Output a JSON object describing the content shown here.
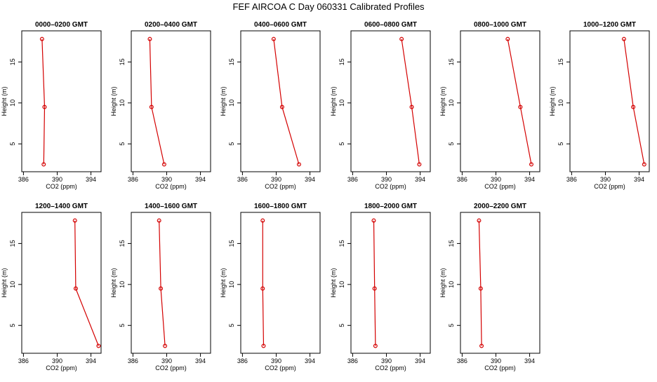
{
  "figure": {
    "title": "FEF AIRCOA C  Day 060331  Calibrated Profiles"
  },
  "chart_data": [
    {
      "type": "line",
      "title": "0000–0200 GMT",
      "xlabel": "CO2 (ppm)",
      "ylabel": "Height (m)",
      "xlim": [
        385.8,
        395.2
      ],
      "ylim": [
        1.6,
        18.8
      ],
      "xticks": [
        386,
        390,
        394
      ],
      "yticks": [
        5,
        10,
        15
      ],
      "x": [
        388.4,
        388.5,
        388.2
      ],
      "y": [
        2.5,
        9.5,
        17.8
      ]
    },
    {
      "type": "line",
      "title": "0200–0400 GMT",
      "xlabel": "CO2 (ppm)",
      "ylabel": "Height (m)",
      "xlim": [
        385.8,
        395.2
      ],
      "ylim": [
        1.6,
        18.8
      ],
      "xticks": [
        386,
        390,
        394
      ],
      "yticks": [
        5,
        10,
        15
      ],
      "x": [
        389.7,
        388.2,
        388.0
      ],
      "y": [
        2.5,
        9.5,
        17.8
      ]
    },
    {
      "type": "line",
      "title": "0400–0600 GMT",
      "xlabel": "CO2 (ppm)",
      "ylabel": "Height (m)",
      "xlim": [
        385.8,
        395.2
      ],
      "ylim": [
        1.6,
        18.8
      ],
      "xticks": [
        386,
        390,
        394
      ],
      "yticks": [
        5,
        10,
        15
      ],
      "x": [
        392.7,
        390.7,
        389.7
      ],
      "y": [
        2.5,
        9.5,
        17.8
      ]
    },
    {
      "type": "line",
      "title": "0600–0800 GMT",
      "xlabel": "CO2 (ppm)",
      "ylabel": "Height (m)",
      "xlim": [
        385.8,
        395.2
      ],
      "ylim": [
        1.6,
        18.8
      ],
      "xticks": [
        386,
        390,
        394
      ],
      "yticks": [
        5,
        10,
        15
      ],
      "x": [
        393.9,
        393.0,
        391.8
      ],
      "y": [
        2.5,
        9.5,
        17.8
      ]
    },
    {
      "type": "line",
      "title": "0800–1000 GMT",
      "xlabel": "CO2 (ppm)",
      "ylabel": "Height (m)",
      "xlim": [
        385.8,
        395.2
      ],
      "ylim": [
        1.6,
        18.8
      ],
      "xticks": [
        386,
        390,
        394
      ],
      "yticks": [
        5,
        10,
        15
      ],
      "x": [
        394.2,
        392.9,
        391.4
      ],
      "y": [
        2.5,
        9.5,
        17.8
      ]
    },
    {
      "type": "line",
      "title": "1000–1200 GMT",
      "xlabel": "CO2 (ppm)",
      "ylabel": "Height (m)",
      "xlim": [
        385.8,
        395.2
      ],
      "ylim": [
        1.6,
        18.8
      ],
      "xticks": [
        386,
        390,
        394
      ],
      "yticks": [
        5,
        10,
        15
      ],
      "x": [
        394.6,
        393.3,
        392.2
      ],
      "y": [
        2.5,
        9.5,
        17.8
      ]
    },
    {
      "type": "line",
      "title": "1200–1400 GMT",
      "xlabel": "CO2 (ppm)",
      "ylabel": "Height (m)",
      "xlim": [
        385.8,
        395.2
      ],
      "ylim": [
        1.6,
        18.8
      ],
      "xticks": [
        386,
        390,
        394
      ],
      "yticks": [
        5,
        10,
        15
      ],
      "x": [
        394.9,
        392.2,
        392.1
      ],
      "y": [
        2.5,
        9.5,
        17.8
      ]
    },
    {
      "type": "line",
      "title": "1400–1600 GMT",
      "xlabel": "CO2 (ppm)",
      "ylabel": "Height (m)",
      "xlim": [
        385.8,
        395.2
      ],
      "ylim": [
        1.6,
        18.8
      ],
      "xticks": [
        386,
        390,
        394
      ],
      "yticks": [
        5,
        10,
        15
      ],
      "x": [
        389.8,
        389.3,
        389.1
      ],
      "y": [
        2.5,
        9.5,
        17.8
      ]
    },
    {
      "type": "line",
      "title": "1600–1800 GMT",
      "xlabel": "CO2 (ppm)",
      "ylabel": "Height (m)",
      "xlim": [
        385.8,
        395.2
      ],
      "ylim": [
        1.6,
        18.8
      ],
      "xticks": [
        386,
        390,
        394
      ],
      "yticks": [
        5,
        10,
        15
      ],
      "x": [
        388.5,
        388.4,
        388.4
      ],
      "y": [
        2.5,
        9.5,
        17.8
      ]
    },
    {
      "type": "line",
      "title": "1800–2000 GMT",
      "xlabel": "CO2 (ppm)",
      "ylabel": "Height (m)",
      "xlim": [
        385.8,
        395.2
      ],
      "ylim": [
        1.6,
        18.8
      ],
      "xticks": [
        386,
        390,
        394
      ],
      "yticks": [
        5,
        10,
        15
      ],
      "x": [
        388.7,
        388.6,
        388.5
      ],
      "y": [
        2.5,
        9.5,
        17.8
      ]
    },
    {
      "type": "line",
      "title": "2000–2200 GMT",
      "xlabel": "CO2 (ppm)",
      "ylabel": "Height (m)",
      "xlim": [
        385.8,
        395.2
      ],
      "ylim": [
        1.6,
        18.8
      ],
      "xticks": [
        386,
        390,
        394
      ],
      "yticks": [
        5,
        10,
        15
      ],
      "x": [
        388.3,
        388.2,
        388.0
      ],
      "y": [
        2.5,
        9.5,
        17.8
      ]
    }
  ],
  "style": {
    "line_color": "#d40000",
    "marker_color": "#d40000",
    "axis_color": "#000000"
  }
}
